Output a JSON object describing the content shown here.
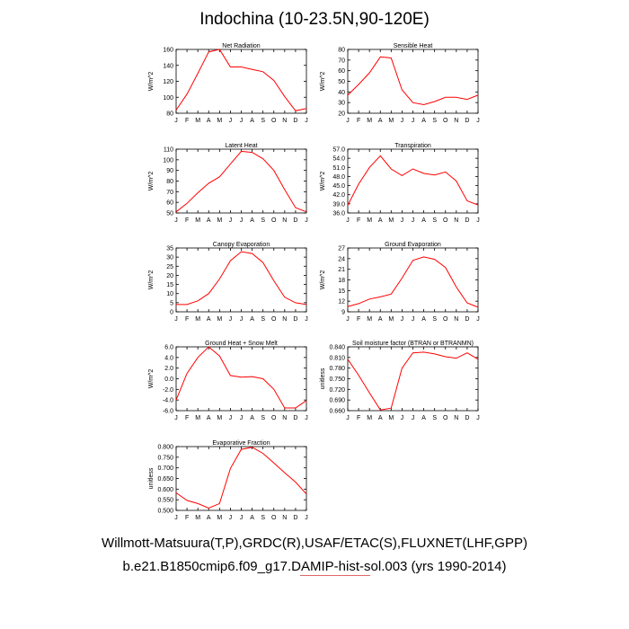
{
  "title": "Indochina (10-23.5N,90-120E)",
  "footer": {
    "line1": "Willmott-Matsuura(T,P),GRDC(R),USAF/ETAC(S),FLUXNET(LHF,GPP)",
    "line2": "b.e21.B1850cmip6.f09_g17.DAMIP-hist-sol.003 (yrs 1990-2014)"
  },
  "colors": {
    "line": "#ff0000",
    "axis": "#000000"
  },
  "month_labels": [
    "J",
    "F",
    "M",
    "A",
    "M",
    "J",
    "J",
    "A",
    "S",
    "O",
    "N",
    "D",
    "J"
  ],
  "chart_data": [
    {
      "type": "line",
      "title": "Net Radiation",
      "ylabel": "W/m^2",
      "ylim": [
        80,
        160
      ],
      "yticks": [
        "80",
        "100",
        "120",
        "140",
        "160"
      ],
      "x": [
        "J",
        "F",
        "M",
        "A",
        "M",
        "J",
        "J",
        "A",
        "S",
        "O",
        "N",
        "D",
        "J"
      ],
      "values": [
        84,
        104,
        130,
        157,
        160,
        138,
        138,
        135,
        132,
        121,
        101,
        83,
        86
      ]
    },
    {
      "type": "line",
      "title": "Sensible Heat",
      "ylabel": "W/m^2",
      "ylim": [
        20,
        80
      ],
      "yticks": [
        "20",
        "30",
        "40",
        "50",
        "60",
        "70",
        "80"
      ],
      "x": [
        "J",
        "F",
        "M",
        "A",
        "M",
        "J",
        "J",
        "A",
        "S",
        "O",
        "N",
        "D",
        "J"
      ],
      "values": [
        37,
        47,
        58,
        73,
        72,
        42,
        30,
        28,
        31,
        35,
        35,
        33,
        37
      ]
    },
    {
      "type": "line",
      "title": "Latent Heat",
      "ylabel": "W/m^2",
      "ylim": [
        50,
        110
      ],
      "yticks": [
        "50",
        "60",
        "70",
        "80",
        "90",
        "100",
        "110"
      ],
      "x": [
        "J",
        "F",
        "M",
        "A",
        "M",
        "J",
        "J",
        "A",
        "S",
        "O",
        "N",
        "D",
        "J"
      ],
      "values": [
        51,
        59,
        69,
        78,
        84,
        96,
        108,
        107,
        101,
        90,
        72,
        55,
        51
      ]
    },
    {
      "type": "line",
      "title": "Transpiration",
      "ylabel": "W/m^2",
      "ylim": [
        36,
        57
      ],
      "yticks": [
        "36.0",
        "39.0",
        "42.0",
        "45.0",
        "48.0",
        "51.0",
        "54.0",
        "57.0"
      ],
      "x": [
        "J",
        "F",
        "M",
        "A",
        "M",
        "J",
        "J",
        "A",
        "S",
        "O",
        "N",
        "D",
        "J"
      ],
      "values": [
        38.5,
        45.5,
        51.0,
        54.8,
        50.5,
        48.3,
        50.5,
        49.0,
        48.5,
        49.5,
        46.5,
        40.0,
        38.6
      ]
    },
    {
      "type": "line",
      "title": "Canopy Evaporation",
      "ylabel": "W/m^2",
      "ylim": [
        0,
        35
      ],
      "yticks": [
        "0",
        "5",
        "10",
        "15",
        "20",
        "25",
        "30",
        "35"
      ],
      "x": [
        "J",
        "F",
        "M",
        "A",
        "M",
        "J",
        "J",
        "A",
        "S",
        "O",
        "N",
        "D",
        "J"
      ],
      "values": [
        4,
        4,
        6,
        10,
        18,
        28,
        33,
        32,
        27,
        17,
        8,
        5,
        4
      ]
    },
    {
      "type": "line",
      "title": "Ground Evaporation",
      "ylabel": "W/m^2",
      "ylim": [
        9,
        27
      ],
      "yticks": [
        "9",
        "12",
        "15",
        "18",
        "21",
        "24",
        "27"
      ],
      "x": [
        "J",
        "F",
        "M",
        "A",
        "M",
        "J",
        "J",
        "A",
        "S",
        "O",
        "N",
        "D",
        "J"
      ],
      "values": [
        10.5,
        11.3,
        12.6,
        13.2,
        14.0,
        18.5,
        23.5,
        24.5,
        23.8,
        21.5,
        16.0,
        11.5,
        10.3
      ]
    },
    {
      "type": "line",
      "title": "Ground Heat + Snow Melt",
      "ylabel": "W/m^2",
      "ylim": [
        -6,
        6
      ],
      "yticks": [
        "-6.0",
        "-4.0",
        "-2.0",
        "0.0",
        "2.0",
        "4.0",
        "6.0"
      ],
      "x": [
        "J",
        "F",
        "M",
        "A",
        "M",
        "J",
        "J",
        "A",
        "S",
        "O",
        "N",
        "D",
        "J"
      ],
      "values": [
        -4.0,
        1.0,
        4.0,
        6.0,
        4.3,
        0.6,
        0.3,
        0.4,
        0.0,
        -2.0,
        -5.5,
        -5.5,
        -4.1
      ]
    },
    {
      "type": "line",
      "title": "Soil moisture factor (BTRAN or BTRANMN)",
      "ylabel": "unitless",
      "ylim": [
        0.66,
        0.84
      ],
      "yticks": [
        "0.660",
        "0.690",
        "0.720",
        "0.750",
        "0.780",
        "0.810",
        "0.840"
      ],
      "x": [
        "J",
        "F",
        "M",
        "A",
        "M",
        "J",
        "J",
        "A",
        "S",
        "O",
        "N",
        "D",
        "J"
      ],
      "values": [
        0.805,
        0.76,
        0.71,
        0.662,
        0.667,
        0.78,
        0.823,
        0.825,
        0.82,
        0.812,
        0.808,
        0.823,
        0.805
      ]
    },
    {
      "type": "line",
      "title": "Evaporative Fraction",
      "ylabel": "unitless",
      "ylim": [
        0.5,
        0.8
      ],
      "yticks": [
        "0.500",
        "0.550",
        "0.600",
        "0.650",
        "0.700",
        "0.750",
        "0.800"
      ],
      "x": [
        "J",
        "F",
        "M",
        "A",
        "M",
        "J",
        "J",
        "A",
        "S",
        "O",
        "N",
        "D",
        "J"
      ],
      "values": [
        0.583,
        0.547,
        0.532,
        0.511,
        0.532,
        0.697,
        0.787,
        0.797,
        0.768,
        0.723,
        0.677,
        0.633,
        0.577
      ]
    }
  ]
}
